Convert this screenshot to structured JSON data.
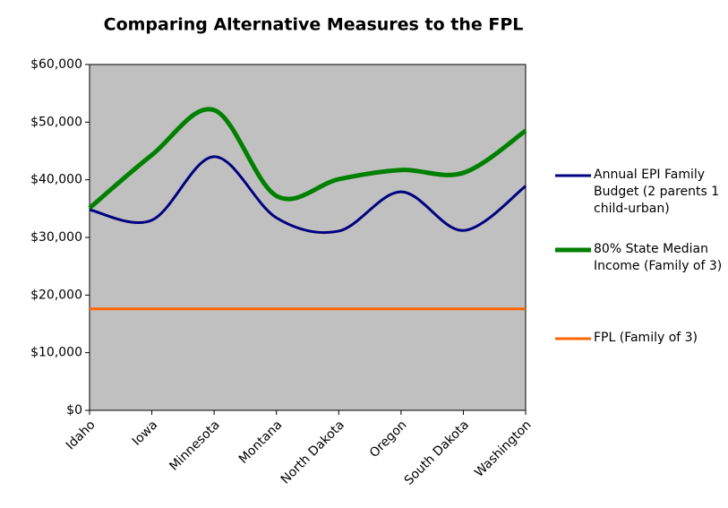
{
  "chart_data": {
    "type": "line",
    "title": "Comparing Alternative Measures to the FPL",
    "categories": [
      "Idaho",
      "Iowa",
      "Minnesota",
      "Montana",
      "North Dakota",
      "Oregon",
      "South Dakota",
      "Washington"
    ],
    "series": [
      {
        "name": "Annual EPI Family Budget (2 parents 1 child-urban)",
        "color": "#000080",
        "values": [
          34800,
          33000,
          44000,
          33400,
          31100,
          37900,
          31200,
          38900
        ]
      },
      {
        "name": "80% State Median Income (Family of 3)",
        "color": "#008000",
        "values": [
          35100,
          44300,
          52100,
          37200,
          40100,
          41700,
          41200,
          48500
        ]
      },
      {
        "name": "FPL (Family of 3)",
        "color": "#ff6600",
        "values": [
          17600,
          17600,
          17600,
          17600,
          17600,
          17600,
          17600,
          17600
        ]
      }
    ],
    "ylim": [
      0,
      60000
    ],
    "yticks": [
      {
        "value": 0,
        "label": "$0"
      },
      {
        "value": 10000,
        "label": "$10,000"
      },
      {
        "value": 20000,
        "label": "$20,000"
      },
      {
        "value": 30000,
        "label": "$30,000"
      },
      {
        "value": 40000,
        "label": "$40,000"
      },
      {
        "value": 50000,
        "label": "$50,000"
      },
      {
        "value": 60000,
        "label": "$60,000"
      }
    ],
    "smooth": true,
    "plot_background": "#c0c0c0",
    "legend": "right"
  }
}
